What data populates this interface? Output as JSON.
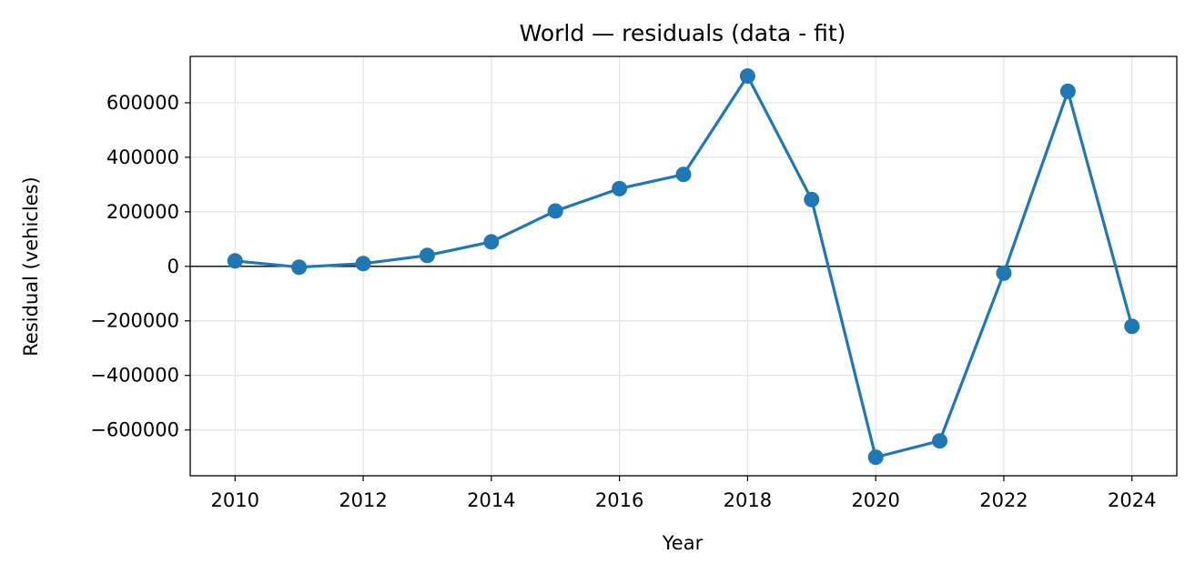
{
  "chart_data": {
    "type": "line",
    "title": "World — residuals (data - fit)",
    "xlabel": "Year",
    "ylabel": "Residual (vehicles)",
    "x": [
      2010,
      2011,
      2012,
      2013,
      2014,
      2015,
      2016,
      2017,
      2018,
      2019,
      2020,
      2021,
      2022,
      2023,
      2024
    ],
    "series": [
      {
        "values": [
          20000,
          -3000,
          10000,
          40000,
          90000,
          203000,
          285000,
          337000,
          698000,
          245000,
          -700000,
          -640000,
          -25000,
          642000,
          -220000
        ]
      }
    ],
    "xlim": [
      2009.3,
      2024.7
    ],
    "ylim": [
      -768000,
      770000
    ],
    "xticks": [
      2010,
      2012,
      2014,
      2016,
      2018,
      2020,
      2022,
      2024
    ],
    "yticks": [
      -600000,
      -400000,
      -200000,
      0,
      200000,
      400000,
      600000
    ],
    "ytick_labels": [
      "−600000",
      "−400000",
      "−200000",
      "0",
      "200000",
      "400000",
      "600000"
    ],
    "grid": true,
    "zero_line": true,
    "colors": {
      "series": "#1f77b4",
      "grid": "#e3e3e3",
      "zero_line": "#000000"
    }
  }
}
